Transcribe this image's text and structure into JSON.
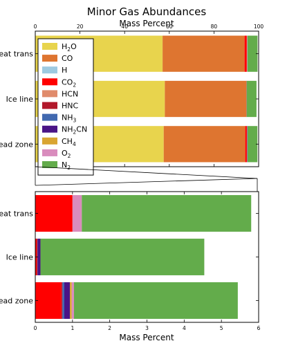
{
  "title": "Minor Gas Abundances",
  "chart_data": [
    {
      "type": "bar",
      "orientation": "horizontal",
      "stacked": true,
      "xlabel": "Mass Percent",
      "xlabel_position": "top",
      "xlim": [
        0,
        100
      ],
      "xticks": [
        "0",
        "20",
        "40",
        "60",
        "80",
        "100"
      ],
      "categories": [
        "Heat trans",
        "Ice line",
        "Dead zone"
      ],
      "legend_position": "upper-left",
      "series": [
        {
          "name": "H$_2$O",
          "label_main": "H",
          "label_sub": "2",
          "label_tail": "O",
          "color": "#e8d44d",
          "values": [
            57.0,
            58.0,
            57.5
          ]
        },
        {
          "name": "CO",
          "label_main": "CO",
          "label_sub": "",
          "label_tail": "",
          "color": "#de7530",
          "values": [
            36.7,
            36.5,
            36.5
          ]
        },
        {
          "name": "H",
          "label_main": "H",
          "label_sub": "",
          "label_tail": "",
          "color": "#9ecae1",
          "values": [
            0.0,
            0.0,
            0.0
          ]
        },
        {
          "name": "CO$_2$",
          "label_main": "CO",
          "label_sub": "2",
          "label_tail": "",
          "color": "#ff0000",
          "values": [
            1.0,
            0.04,
            0.7
          ]
        },
        {
          "name": "HCN",
          "label_main": "HCN",
          "label_sub": "",
          "label_tail": "",
          "color": "#e08b6b",
          "values": [
            0.0,
            0.0,
            0.0
          ]
        },
        {
          "name": "HNC",
          "label_main": "HNC",
          "label_sub": "",
          "label_tail": "",
          "color": "#b2182b",
          "values": [
            0.0,
            0.02,
            0.03
          ]
        },
        {
          "name": "NH$_3$",
          "label_main": "NH",
          "label_sub": "3",
          "label_tail": "",
          "color": "#4169b0",
          "values": [
            0.0,
            0.0,
            0.05
          ]
        },
        {
          "name": "NH$_2$CN",
          "label_main": "NH",
          "label_sub": "2",
          "label_tail": "CN",
          "color": "#4a1486",
          "values": [
            0.0,
            0.08,
            0.15
          ]
        },
        {
          "name": "CH$_4$",
          "label_main": "CH",
          "label_sub": "4",
          "label_tail": "",
          "color": "#d9a532",
          "values": [
            0.0,
            0.0,
            0.05
          ]
        },
        {
          "name": "O$_2$",
          "label_main": "O",
          "label_sub": "2",
          "label_tail": "",
          "color": "#d98cbd",
          "values": [
            0.25,
            0.0,
            0.06
          ]
        },
        {
          "name": "N$_2$",
          "label_main": "N",
          "label_sub": "2",
          "label_tail": "",
          "color": "#63ac4b",
          "values": [
            4.55,
            4.4,
            4.4
          ]
        }
      ]
    },
    {
      "type": "bar",
      "orientation": "horizontal",
      "stacked": true,
      "xlabel": "Mass Percent",
      "xlim": [
        0,
        6
      ],
      "xticks": [
        "0",
        "1",
        "2",
        "3",
        "4",
        "5",
        "6"
      ],
      "categories": [
        "Heat trans",
        "Ice line",
        "Dead zone"
      ],
      "series": [
        {
          "name": "CO$_2$",
          "color": "#ff0000",
          "values": [
            1.0,
            0.04,
            0.7
          ]
        },
        {
          "name": "HNC",
          "color": "#b2182b",
          "values": [
            0.0,
            0.02,
            0.03
          ]
        },
        {
          "name": "NH$_3$",
          "color": "#4169b0",
          "values": [
            0.0,
            0.0,
            0.05
          ]
        },
        {
          "name": "NH$_2$CN",
          "color": "#4a1486",
          "values": [
            0.0,
            0.08,
            0.15
          ]
        },
        {
          "name": "CH$_4$",
          "color": "#d9a532",
          "values": [
            0.0,
            0.0,
            0.05
          ]
        },
        {
          "name": "O$_2$",
          "color": "#d98cbd",
          "values": [
            0.25,
            0.0,
            0.06
          ]
        },
        {
          "name": "N$_2$",
          "color": "#63ac4b",
          "values": [
            4.55,
            4.4,
            4.4
          ]
        }
      ]
    }
  ]
}
